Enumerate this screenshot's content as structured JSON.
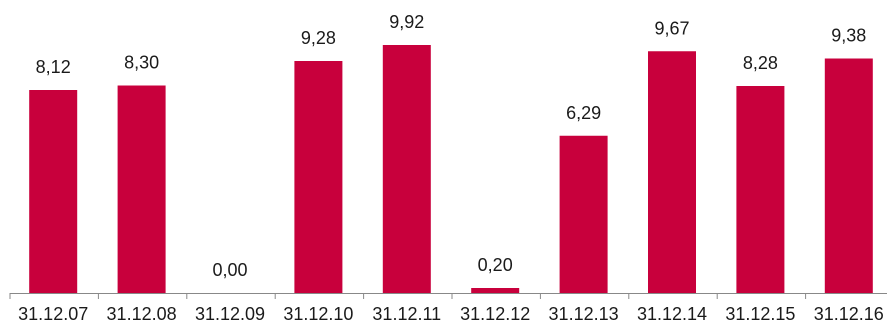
{
  "chart_data": {
    "type": "bar",
    "categories": [
      "31.12.07",
      "31.12.08",
      "31.12.09",
      "31.12.10",
      "31.12.11",
      "31.12.12",
      "31.12.13",
      "31.12.14",
      "31.12.15",
      "31.12.16"
    ],
    "values": [
      8.12,
      8.3,
      0.0,
      9.28,
      9.92,
      0.2,
      6.29,
      9.67,
      8.28,
      9.38
    ],
    "value_labels": [
      "8,12",
      "8,30",
      "0,00",
      "9,28",
      "9,92",
      "0,20",
      "6,29",
      "9,67",
      "8,28",
      "9,38"
    ],
    "bar_color": "#c8003c",
    "ylim": [
      0,
      10
    ],
    "grid": false,
    "legend": "none"
  }
}
